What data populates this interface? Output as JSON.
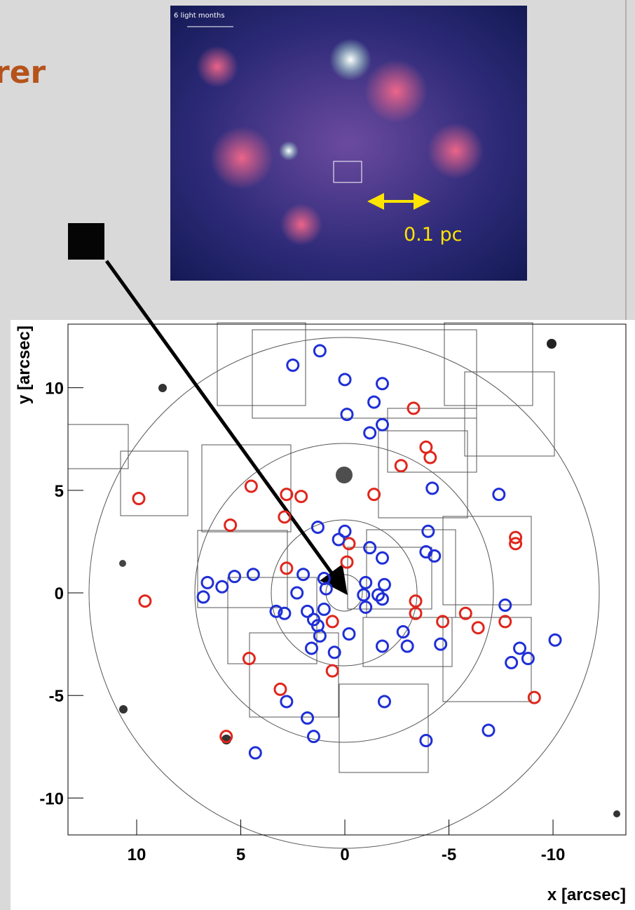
{
  "slide": {
    "title": "rer",
    "image_labels": {
      "scale_bar": "6 light months",
      "distance": "0.1 pc"
    }
  },
  "chart_data": {
    "type": "scatter",
    "xlabel": "x [arcsec]",
    "ylabel": "y [arcsec]",
    "xlim": [
      13.3,
      -13.5
    ],
    "ylim": [
      -11.8,
      13.1
    ],
    "xticks": [
      10,
      5,
      0,
      -5,
      -10
    ],
    "yticks": [
      10,
      5,
      0,
      -5,
      -10
    ],
    "grid": false,
    "series": [
      {
        "color": "#e0261c",
        "x": [
          9.9,
          9.6,
          4.5,
          5.5,
          2.8,
          2.1,
          2.9,
          2.8,
          -0.2,
          -1.4,
          -0.1,
          -3.3,
          -3.9,
          -4.1,
          -2.7,
          -8.2,
          -8.2,
          -3.4,
          -3.4,
          0.6,
          0.6,
          4.6,
          3.1,
          5.7,
          -4.7,
          -5.8,
          -6.4,
          -7.7,
          -9.1
        ],
        "y": [
          4.6,
          -0.4,
          5.2,
          3.3,
          4.8,
          4.7,
          3.7,
          1.2,
          2.4,
          4.8,
          1.5,
          9.0,
          7.1,
          6.6,
          6.2,
          2.7,
          2.4,
          -0.4,
          -1.0,
          -1.4,
          -3.8,
          -3.2,
          -4.7,
          -7.0,
          -1.4,
          -1.0,
          -1.7,
          -1.4,
          -5.1
        ]
      },
      {
        "color": "#1f2fd6",
        "x": [
          2.5,
          1.2,
          0,
          -1.8,
          -1.4,
          -0.1,
          -1.2,
          -1.8,
          -4.2,
          -7.4,
          -4.0,
          1.3,
          0,
          0.3,
          -1.2,
          -1.8,
          -3.9,
          -4.3,
          2.0,
          6.6,
          5.9,
          5.3,
          6.8,
          4.4,
          1.0,
          0.9,
          2.3,
          -1.0,
          -1.9,
          -1.6,
          -0.9,
          -1.0,
          -1.8,
          3.3,
          2.9,
          1.8,
          1.5,
          1.3,
          1.0,
          1.2,
          -0.2,
          1.6,
          0.5,
          -1.8,
          -3.0,
          -2.8,
          -4.6,
          -7.7,
          -8.4,
          -8.8,
          -8.0,
          -10.1,
          2.8,
          1.8,
          1.5,
          4.3,
          -1.9,
          -3.9,
          -6.9
        ],
        "y": [
          11.1,
          11.8,
          10.4,
          10.2,
          9.3,
          8.7,
          7.8,
          8.2,
          5.1,
          4.8,
          3.0,
          3.2,
          3.0,
          2.6,
          2.2,
          1.7,
          2.0,
          1.8,
          0.9,
          0.5,
          0.3,
          0.8,
          -0.2,
          0.9,
          0.7,
          0.2,
          0,
          0.5,
          0.4,
          -0.1,
          -0.1,
          -0.7,
          -0.3,
          -0.9,
          -1.0,
          -0.9,
          -1.3,
          -1.6,
          -0.8,
          -2.1,
          -2.0,
          -2.7,
          -2.9,
          -2.6,
          -2.6,
          -1.9,
          -2.5,
          -0.6,
          -2.7,
          -3.2,
          -3.4,
          -2.3,
          -5.3,
          -6.1,
          -7.0,
          -7.8,
          -5.3,
          -7.2,
          -6.7
        ]
      }
    ]
  }
}
